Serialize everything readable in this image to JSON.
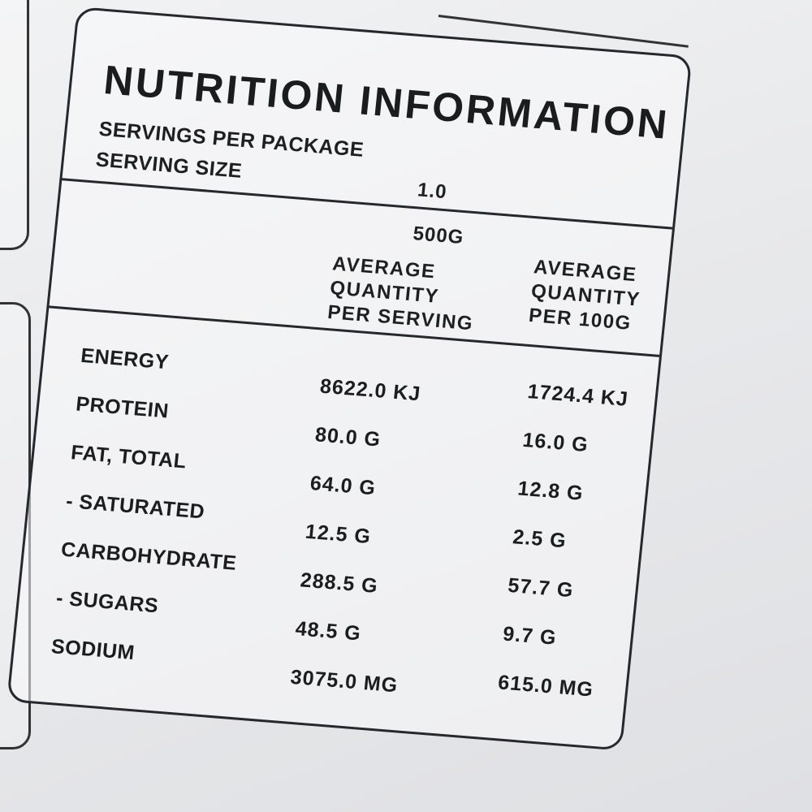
{
  "label": {
    "title": "NUTRITION INFORMATION",
    "servings_per_package_label": "SERVINGS PER PACKAGE",
    "servings_per_package_value": "1.0",
    "serving_size_label": "SERVING SIZE",
    "serving_size_value": "500G",
    "col_per_serving": [
      "AVERAGE",
      "QUANTITY",
      "PER SERVING"
    ],
    "col_per_100g": [
      "AVERAGE",
      "QUANTITY",
      "PER 100G"
    ],
    "rows": [
      {
        "name": "ENERGY",
        "per_serving": "8622.0 KJ",
        "per_100g": "1724.4 KJ"
      },
      {
        "name": "PROTEIN",
        "per_serving": "80.0 G",
        "per_100g": "16.0 G"
      },
      {
        "name": "FAT, TOTAL",
        "per_serving": "64.0 G",
        "per_100g": "12.8 G"
      },
      {
        "name": "- SATURATED",
        "per_serving": "12.5 G",
        "per_100g": "2.5 G"
      },
      {
        "name": "CARBOHYDRATE",
        "per_serving": "288.5 G",
        "per_100g": "57.7 G"
      },
      {
        "name": "- SUGARS",
        "per_serving": "48.5 G",
        "per_100g": "9.7 G"
      },
      {
        "name": "SODIUM",
        "per_serving": "3075.0 MG",
        "per_100g": "615.0 MG"
      }
    ]
  }
}
